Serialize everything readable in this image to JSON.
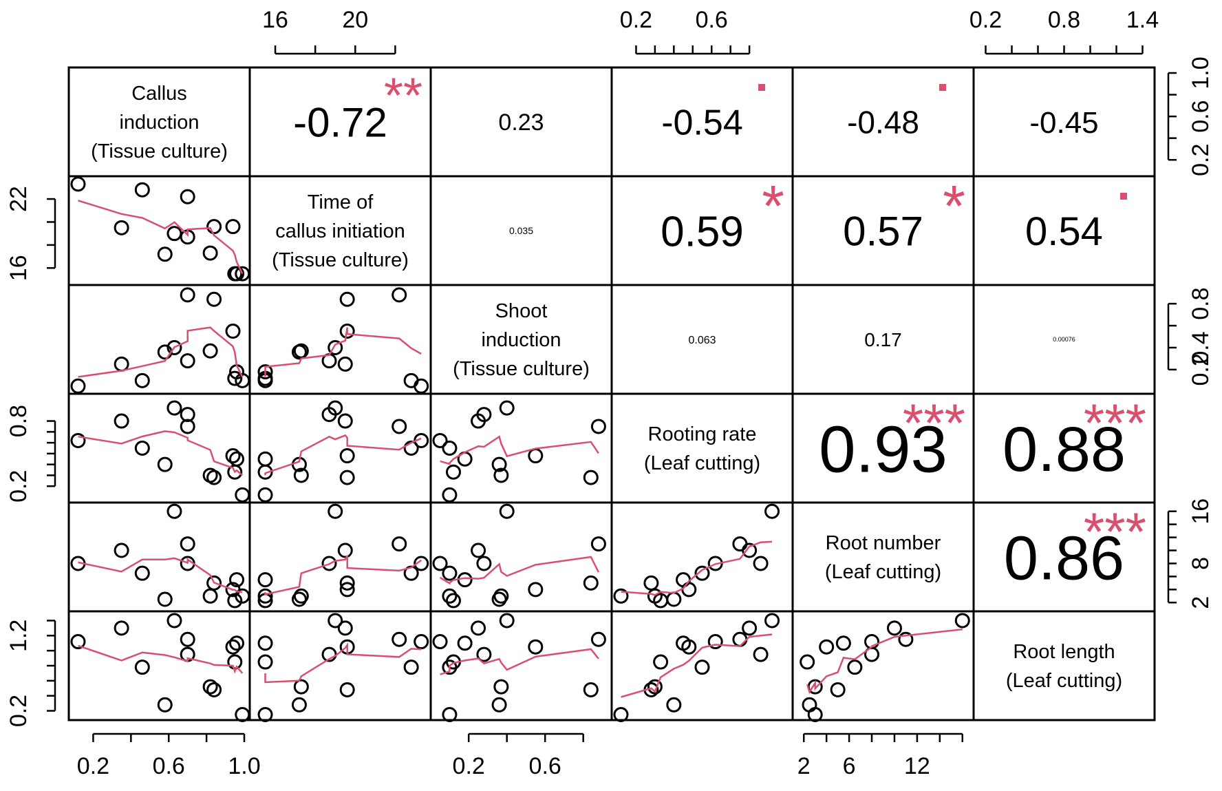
{
  "colors": {
    "smooth": "#d9506e",
    "stars": "#d9506e",
    "points": "#000000",
    "frame": "#000000"
  },
  "chart_data": {
    "type": "scatter",
    "layout": "correlation-matrix",
    "variables": [
      {
        "label_lines": [
          "Callus",
          "induction",
          "(Tissue culture)"
        ],
        "ticks": [
          0.2,
          0.4,
          0.6,
          0.8,
          1.0
        ],
        "tick_labels": [
          "0.2",
          "0.6",
          "1.0"
        ],
        "range": [
          0.1,
          1.0
        ]
      },
      {
        "label_lines": [
          "Time of",
          "callus initiation",
          "(Tissue culture)"
        ],
        "ticks": [
          16,
          18,
          20,
          22
        ],
        "tick_labels": [
          "16",
          "20"
        ],
        "y_tick_labels": [
          "16",
          "22"
        ],
        "range": [
          15.0,
          23.5
        ]
      },
      {
        "label_lines": [
          "Shoot",
          "induction",
          "(Tissue culture)"
        ],
        "ticks": [
          0.2,
          0.4,
          0.6,
          0.8
        ],
        "tick_labels": [
          "0.2",
          "0.6"
        ],
        "y_tick_labels": [
          "0.2",
          "0.4",
          "0.8"
        ],
        "range": [
          0.03,
          0.92
        ]
      },
      {
        "label_lines": [
          "Rooting rate",
          "(Leaf cutting)"
        ],
        "ticks": [
          0.2,
          0.3,
          0.4,
          0.5,
          0.6,
          0.7,
          0.8
        ],
        "tick_labels": [
          "0.2",
          "0.6"
        ],
        "y_tick_labels": [
          "0.2",
          "0.8"
        ],
        "range": [
          0.1,
          1.0
        ]
      },
      {
        "label_lines": [
          "Root number",
          "(Leaf cutting)"
        ],
        "ticks": [
          2,
          4,
          6,
          8,
          10,
          12,
          14,
          16
        ],
        "tick_labels": [
          "2",
          "6",
          "12"
        ],
        "y_tick_labels": [
          "2",
          "8",
          "16"
        ],
        "range": [
          1.5,
          16.5
        ]
      },
      {
        "label_lines": [
          "Root length",
          "(Leaf cutting)"
        ],
        "ticks": [
          0.2,
          0.4,
          0.6,
          0.8,
          1.0,
          1.2,
          1.4
        ],
        "tick_labels": [
          "0.2",
          "0.8",
          "1.4"
        ],
        "y_tick_labels": [
          "0.2",
          "1.2"
        ],
        "range": [
          0.15,
          1.45
        ]
      }
    ],
    "observations": [
      {
        "callus": 0.12,
        "time": 23.3,
        "shoot": 0.05,
        "rooting": 0.62,
        "rootnum": 8.0,
        "rootlen": 1.12
      },
      {
        "callus": 0.35,
        "time": 19.5,
        "shoot": 0.25,
        "rooting": 0.8,
        "rootnum": 10.0,
        "rootlen": 1.3
      },
      {
        "callus": 0.46,
        "time": 22.8,
        "shoot": 0.1,
        "rooting": 0.55,
        "rootnum": 6.5,
        "rootlen": 0.78
      },
      {
        "callus": 0.58,
        "time": 17.2,
        "shoot": 0.36,
        "rooting": 0.4,
        "rootnum": 2.5,
        "rootlen": 0.28
      },
      {
        "callus": 0.63,
        "time": 19.0,
        "shoot": 0.4,
        "rooting": 0.92,
        "rootnum": 16.0,
        "rootlen": 1.4
      },
      {
        "callus": 0.7,
        "time": 18.7,
        "shoot": 0.28,
        "rooting": 0.86,
        "rootnum": 8.0,
        "rootlen": 0.95
      },
      {
        "callus": 0.7,
        "time": 22.2,
        "shoot": 0.88,
        "rooting": 0.75,
        "rootnum": 11.0,
        "rootlen": 1.15
      },
      {
        "callus": 0.82,
        "time": 17.3,
        "shoot": 0.37,
        "rooting": 0.3,
        "rootnum": 3.0,
        "rootlen": 0.52
      },
      {
        "callus": 0.84,
        "time": 19.6,
        "shoot": 0.84,
        "rooting": 0.28,
        "rootnum": 5.0,
        "rootlen": 0.48
      },
      {
        "callus": 0.94,
        "time": 19.6,
        "shoot": 0.55,
        "rooting": 0.48,
        "rootnum": 4.0,
        "rootlen": 1.05
      },
      {
        "callus": 0.95,
        "time": 15.5,
        "shoot": 0.12,
        "rooting": 0.33,
        "rootnum": 2.3,
        "rootlen": 0.85
      },
      {
        "callus": 0.96,
        "time": 15.5,
        "shoot": 0.18,
        "rooting": 0.45,
        "rootnum": 5.5,
        "rootlen": 1.1
      },
      {
        "callus": 0.99,
        "time": 15.5,
        "shoot": 0.1,
        "rooting": 0.12,
        "rootnum": 3.0,
        "rootlen": 0.15
      }
    ],
    "variable_keys": [
      "callus",
      "time",
      "shoot",
      "rooting",
      "rootnum",
      "rootlen"
    ],
    "correlations": [
      {
        "row": 0,
        "col": 1,
        "text": "-0.72",
        "stars": "**",
        "size": 60
      },
      {
        "row": 0,
        "col": 2,
        "text": "0.23",
        "stars": "",
        "size": 34
      },
      {
        "row": 0,
        "col": 3,
        "text": "-0.54",
        "stars": "-",
        "size": 52
      },
      {
        "row": 0,
        "col": 4,
        "text": "-0.48",
        "stars": "-",
        "size": 46
      },
      {
        "row": 0,
        "col": 5,
        "text": "-0.45",
        "stars": "",
        "size": 44
      },
      {
        "row": 1,
        "col": 2,
        "text": "0.035",
        "stars": "",
        "size": 14
      },
      {
        "row": 1,
        "col": 3,
        "text": "0.59",
        "stars": "*",
        "size": 62
      },
      {
        "row": 1,
        "col": 4,
        "text": "0.57",
        "stars": "*",
        "size": 60
      },
      {
        "row": 1,
        "col": 5,
        "text": "0.54",
        "stars": "-",
        "size": 58
      },
      {
        "row": 2,
        "col": 3,
        "text": "0.063",
        "stars": "",
        "size": 16
      },
      {
        "row": 2,
        "col": 4,
        "text": "0.17",
        "stars": "",
        "size": 28
      },
      {
        "row": 2,
        "col": 5,
        "text": "0.00076",
        "stars": "",
        "size": 9
      },
      {
        "row": 3,
        "col": 4,
        "text": "0.93",
        "stars": "***",
        "size": 96
      },
      {
        "row": 3,
        "col": 5,
        "text": "0.88",
        "stars": "***",
        "size": 92
      },
      {
        "row": 4,
        "col": 5,
        "text": "0.86",
        "stars": "***",
        "size": 90
      }
    ]
  }
}
